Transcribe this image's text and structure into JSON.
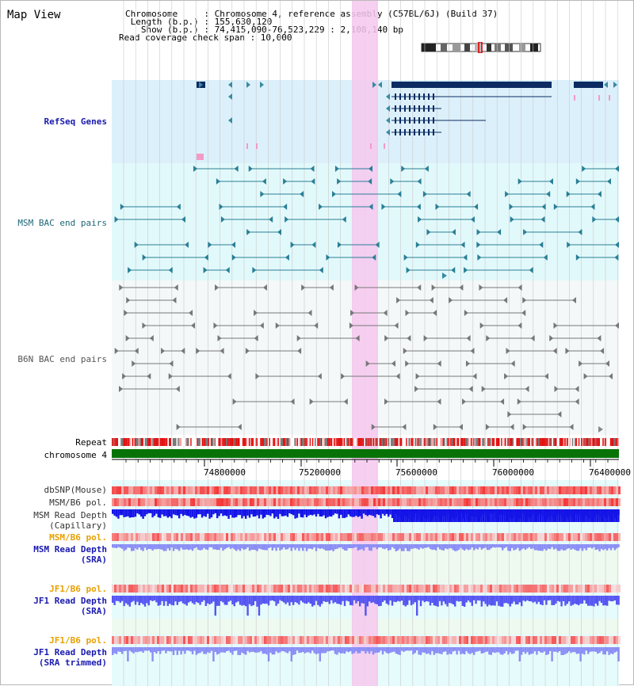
{
  "header": {
    "title": "Map View",
    "info_lines": [
      "Chromosome     : Chromosome 4, reference assembly (C57BL/6J) (Build 37)",
      " Length (b.p.) : 155,630,120",
      "   Show (b.p.) : 74,415,090-76,523,229 : 2,108,140 bp",
      "Read coverage check span : 10,000"
    ]
  },
  "tracks": {
    "refseq": "RefSeq Genes",
    "msm_bac": "MSM BAC end pairs",
    "b6n_bac": "B6N BAC end pairs",
    "repeat": "Repeat",
    "chromosome": "chromosome 4",
    "dbsnp": "dbSNP(Mouse)",
    "msm_b6_pol_1": "MSM/B6 pol.",
    "msm_depth_cap_1": "MSM Read Depth",
    "msm_depth_cap_2": "(Capillary)",
    "msm_b6_pol_2": "MSM/B6 pol.",
    "msm_depth_sra_1": "MSM Read Depth",
    "msm_depth_sra_2": "(SRA)",
    "jf1_b6_pol_1": "JF1/B6 pol.",
    "jf1_depth_sra_1": "JF1 Read Depth",
    "jf1_depth_sra_2": "(SRA)",
    "jf1_b6_pol_2": "JF1/B6 pol.",
    "jf1_depth_trim_1": "JF1 Read Depth",
    "jf1_depth_trim_2": "(SRA trimmed)"
  },
  "axis_ticks": [
    "74800000",
    "75200000",
    "75600000",
    "76000000",
    "76400000"
  ],
  "colors": {
    "refseq_bg": "#dcf0fb",
    "msm_bg": "#e2f9fb",
    "gene": "#0b2b62",
    "msm_feature": "#2a7f96",
    "b6n_feature": "#777777",
    "highlight": "#f6c8ef",
    "chromosome_bar": "#077307",
    "depth_dark": "#1414e8",
    "depth_light": "#8a8ef6"
  }
}
